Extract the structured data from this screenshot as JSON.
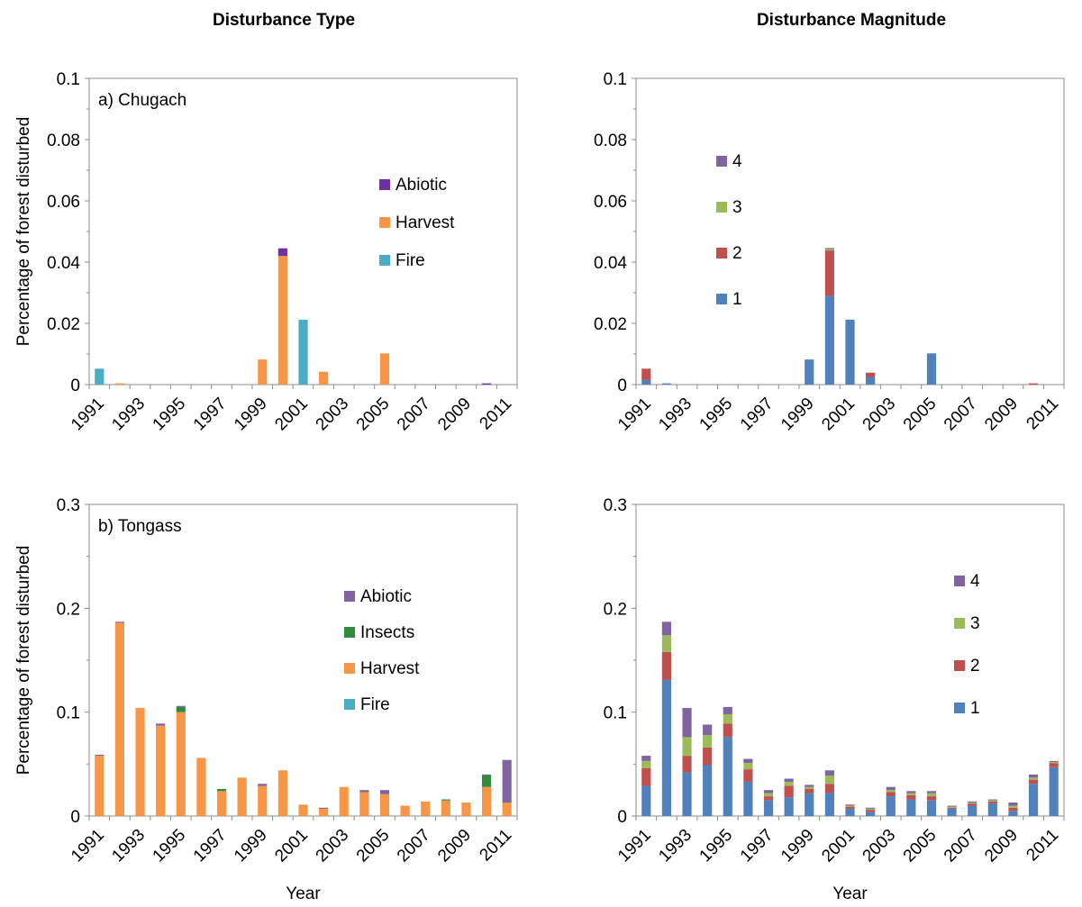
{
  "headers": {
    "left": "Disturbance Type",
    "right": "Disturbance Magnitude"
  },
  "colors": {
    "Abiotic": "#7030a0",
    "Insects": "#2e8b3a",
    "Harvest": "#f79646",
    "Fire": "#4bacc6",
    "Abiotic_b": "#8064a2",
    "m1": "#4f81bd",
    "m2": "#c0504d",
    "m3": "#9bbb59",
    "m4": "#8064a2"
  },
  "chart_data": [
    {
      "type": "bar",
      "stacked": true,
      "panel_label": "a) Chugach",
      "ylabel": "Percentage of forest disturbed",
      "xlabel": "",
      "ylim": [
        0,
        0.1
      ],
      "yticks": [
        "0",
        "0.02",
        "0.04",
        "0.06",
        "0.08",
        "0.1"
      ],
      "categories": [
        "1991",
        "1992",
        "1993",
        "1994",
        "1995",
        "1996",
        "1997",
        "1998",
        "1999",
        "2000",
        "2001",
        "2002",
        "2003",
        "2004",
        "2005",
        "2006",
        "2007",
        "2008",
        "2009",
        "2010",
        "2011"
      ],
      "xtick_labels": [
        "1991",
        "1993",
        "1995",
        "1997",
        "1999",
        "2001",
        "2003",
        "2005",
        "2007",
        "2009",
        "2011"
      ],
      "legend_position": "upper-middle",
      "series": [
        {
          "name": "Fire",
          "color_key": "Fire",
          "values": [
            0.0052,
            0,
            0,
            0,
            0,
            0,
            0,
            0,
            0,
            0,
            0.0212,
            0,
            0,
            0,
            0,
            0,
            0,
            0,
            0,
            0,
            0
          ]
        },
        {
          "name": "Harvest",
          "color_key": "Harvest",
          "values": [
            0,
            0.0004,
            0,
            0,
            0,
            0,
            0,
            0,
            0.0082,
            0.042,
            0,
            0.0042,
            0,
            0,
            0.0102,
            0,
            0,
            0,
            0,
            0,
            0
          ]
        },
        {
          "name": "Abiotic",
          "color_key": "Abiotic",
          "values": [
            0,
            0,
            0,
            0,
            0,
            0,
            0,
            0,
            0,
            0.0025,
            0,
            0,
            0,
            0,
            0,
            0,
            0,
            0,
            0,
            0.0004,
            0
          ]
        }
      ],
      "legend_order": [
        "Abiotic",
        "Harvest",
        "Fire"
      ]
    },
    {
      "type": "bar",
      "stacked": true,
      "panel_label": "",
      "ylabel": "",
      "xlabel": "",
      "ylim": [
        0,
        0.1
      ],
      "yticks": [
        "0",
        "0.02",
        "0.04",
        "0.06",
        "0.08",
        "0.1"
      ],
      "categories": [
        "1991",
        "1992",
        "1993",
        "1994",
        "1995",
        "1996",
        "1997",
        "1998",
        "1999",
        "2000",
        "2001",
        "2002",
        "2003",
        "2004",
        "2005",
        "2006",
        "2007",
        "2008",
        "2009",
        "2010",
        "2011"
      ],
      "xtick_labels": [
        "1991",
        "1993",
        "1995",
        "1997",
        "1999",
        "2001",
        "2003",
        "2005",
        "2007",
        "2009",
        "2011"
      ],
      "legend_position": "upper-left",
      "series": [
        {
          "name": "1",
          "color_key": "m1",
          "values": [
            0.0015,
            0.0004,
            0,
            0,
            0,
            0,
            0,
            0,
            0.0082,
            0.029,
            0.0212,
            0.0025,
            0,
            0,
            0.0102,
            0,
            0,
            0,
            0,
            0,
            0
          ]
        },
        {
          "name": "2",
          "color_key": "m2",
          "values": [
            0.0037,
            0,
            0,
            0,
            0,
            0,
            0,
            0,
            0,
            0.0148,
            0,
            0.0014,
            0,
            0,
            0,
            0,
            0,
            0,
            0,
            0.0004,
            0
          ]
        },
        {
          "name": "3",
          "color_key": "m3",
          "values": [
            0,
            0,
            0,
            0,
            0,
            0,
            0,
            0,
            0,
            0.0006,
            0,
            0,
            0,
            0,
            0,
            0,
            0,
            0,
            0,
            0,
            0
          ]
        },
        {
          "name": "4",
          "color_key": "m4",
          "values": [
            0,
            0,
            0,
            0,
            0,
            0,
            0,
            0,
            0,
            0.0002,
            0,
            0,
            0,
            0,
            0,
            0,
            0,
            0,
            0,
            0,
            0
          ]
        }
      ],
      "legend_order": [
        "4",
        "3",
        "2",
        "1"
      ]
    },
    {
      "type": "bar",
      "stacked": true,
      "panel_label": "b) Tongass",
      "ylabel": "Percentage of forest disturbed",
      "xlabel": "Year",
      "ylim": [
        0,
        0.3
      ],
      "yticks": [
        "0",
        "0.1",
        "0.2",
        "0.3"
      ],
      "categories": [
        "1991",
        "1992",
        "1993",
        "1994",
        "1995",
        "1996",
        "1997",
        "1998",
        "1999",
        "2000",
        "2001",
        "2002",
        "2003",
        "2004",
        "2005",
        "2006",
        "2007",
        "2008",
        "2009",
        "2010",
        "2011"
      ],
      "xtick_labels": [
        "1991",
        "1993",
        "1995",
        "1997",
        "1999",
        "2001",
        "2003",
        "2005",
        "2007",
        "2009",
        "2011"
      ],
      "legend_position": "upper-middle",
      "series": [
        {
          "name": "Fire",
          "color_key": "Fire",
          "values": [
            0,
            0,
            0,
            0,
            0,
            0,
            0,
            0,
            0,
            0,
            0,
            0,
            0,
            0,
            0,
            0,
            0,
            0,
            0,
            0,
            0
          ]
        },
        {
          "name": "Harvest",
          "color_key": "Harvest",
          "values": [
            0.058,
            0.186,
            0.104,
            0.087,
            0.1,
            0.056,
            0.024,
            0.037,
            0.029,
            0.044,
            0.011,
            0.007,
            0.028,
            0.023,
            0.021,
            0.01,
            0.014,
            0.015,
            0.013,
            0.028,
            0.013
          ]
        },
        {
          "name": "Insects",
          "color_key": "Insects",
          "values": [
            0,
            0,
            0,
            0,
            0.005,
            0,
            0.002,
            0,
            0,
            0,
            0,
            0,
            0,
            0,
            0,
            0,
            0,
            0.001,
            0,
            0.011,
            0
          ]
        },
        {
          "name": "Abiotic",
          "color_key": "Abiotic_b",
          "values": [
            0.001,
            0.001,
            0,
            0.002,
            0.001,
            0,
            0,
            0,
            0.002,
            0,
            0,
            0.001,
            0,
            0.002,
            0.004,
            0,
            0,
            0,
            0,
            0.001,
            0.041
          ]
        }
      ],
      "legend_order": [
        "Abiotic",
        "Insects",
        "Harvest",
        "Fire"
      ]
    },
    {
      "type": "bar",
      "stacked": true,
      "panel_label": "",
      "ylabel": "",
      "xlabel": "Year",
      "ylim": [
        0,
        0.3
      ],
      "yticks": [
        "0",
        "0.1",
        "0.2",
        "0.3"
      ],
      "categories": [
        "1991",
        "1992",
        "1993",
        "1994",
        "1995",
        "1996",
        "1997",
        "1998",
        "1999",
        "2000",
        "2001",
        "2002",
        "2003",
        "2004",
        "2005",
        "2006",
        "2007",
        "2008",
        "2009",
        "2010",
        "2011"
      ],
      "xtick_labels": [
        "1991",
        "1993",
        "1995",
        "1997",
        "1999",
        "2001",
        "2003",
        "2005",
        "2007",
        "2009",
        "2011"
      ],
      "legend_position": "upper-right",
      "series": [
        {
          "name": "1",
          "color_key": "m1",
          "values": [
            0.029,
            0.131,
            0.042,
            0.049,
            0.076,
            0.033,
            0.015,
            0.018,
            0.022,
            0.022,
            0.007,
            0.004,
            0.019,
            0.016,
            0.015,
            0.007,
            0.01,
            0.012,
            0.005,
            0.031,
            0.047
          ]
        },
        {
          "name": "2",
          "color_key": "m2",
          "values": [
            0.017,
            0.027,
            0.016,
            0.017,
            0.013,
            0.012,
            0.004,
            0.011,
            0.004,
            0.009,
            0.002,
            0.002,
            0.004,
            0.004,
            0.004,
            0.001,
            0.002,
            0.002,
            0.003,
            0.004,
            0.004
          ]
        },
        {
          "name": "3",
          "color_key": "m3",
          "values": [
            0.007,
            0.016,
            0.018,
            0.012,
            0.009,
            0.006,
            0.003,
            0.004,
            0.002,
            0.008,
            0.001,
            0.001,
            0.002,
            0.002,
            0.003,
            0.001,
            0.001,
            0.001,
            0.002,
            0.002,
            0.001
          ]
        },
        {
          "name": "4",
          "color_key": "m4",
          "values": [
            0.005,
            0.013,
            0.028,
            0.01,
            0.007,
            0.004,
            0.003,
            0.003,
            0.002,
            0.005,
            0.001,
            0.001,
            0.003,
            0.002,
            0.002,
            0.001,
            0.001,
            0.001,
            0.003,
            0.003,
            0.001
          ]
        }
      ],
      "legend_order": [
        "4",
        "3",
        "2",
        "1"
      ]
    }
  ]
}
